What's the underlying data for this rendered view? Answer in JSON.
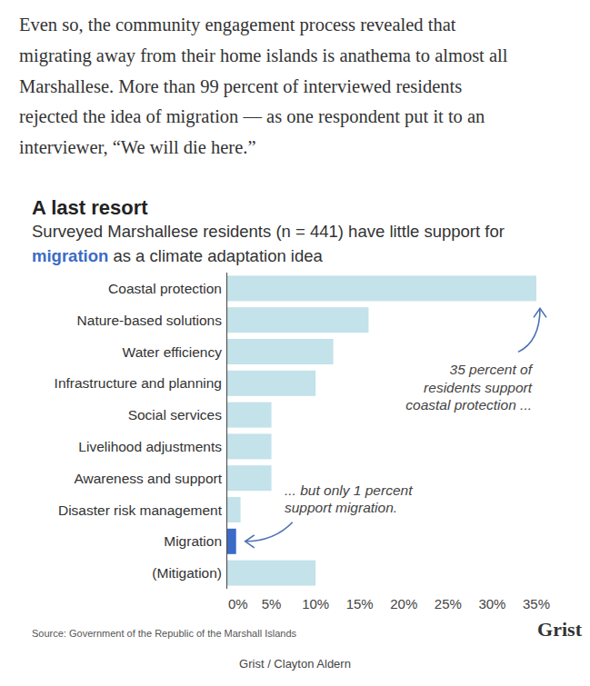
{
  "article": {
    "lines": [
      "Even so, the community engagement process revealed that",
      "migrating away from their home islands is anathema to almost all",
      "Marshallese. More than 99 percent of interviewed residents",
      "rejected the idea of migration — as one respondent put it to an",
      "interviewer, “We will die here.”"
    ]
  },
  "chart_data": {
    "type": "bar",
    "orientation": "horizontal",
    "title": "A last resort",
    "subtitle": "Surveyed Marshallese residents (n = 441) have little support for migration as a climate adaptation idea",
    "subtitle_highlight": "migration",
    "categories": [
      "Coastal protection",
      "Nature-based solutions",
      "Water efficiency",
      "Infrastructure and planning",
      "Social services",
      "Livelihood adjustments",
      "Awareness and support",
      "Disaster risk management",
      "Migration",
      "(Mitigation)"
    ],
    "values": [
      35,
      16,
      12,
      10,
      5,
      5,
      5,
      1.5,
      1,
      10
    ],
    "colors": [
      "#c3e2ea",
      "#c3e2ea",
      "#c3e2ea",
      "#c3e2ea",
      "#c3e2ea",
      "#c3e2ea",
      "#c3e2ea",
      "#c3e2ea",
      "#3b6bc6",
      "#c3e2ea"
    ],
    "xlim": [
      0,
      35
    ],
    "xticks": [
      {
        "value": 0,
        "label": "0%"
      },
      {
        "value": 5,
        "label": "5%"
      },
      {
        "value": 10,
        "label": "10%"
      },
      {
        "value": 15,
        "label": "15%"
      },
      {
        "value": 20,
        "label": "20%"
      },
      {
        "value": 25,
        "label": "25%"
      },
      {
        "value": 30,
        "label": "30%"
      },
      {
        "value": 35,
        "label": "35%"
      }
    ],
    "grid": false,
    "annotations": [
      {
        "text": [
          "35 percent of",
          "residents support",
          "coastal protection ..."
        ]
      },
      {
        "text": [
          "... but only 1 percent",
          "support migration."
        ]
      }
    ],
    "source": "Source: Government of the Republic of the Marshall Islands",
    "brand": "Grist"
  },
  "caption": "Grist / Clayton Aldern"
}
